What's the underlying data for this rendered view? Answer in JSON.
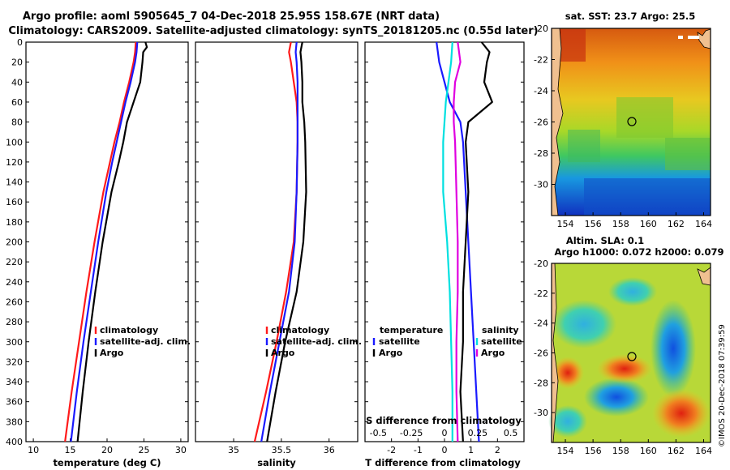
{
  "header": {
    "line1": "Argo profile: aoml 5905645_7 04-Dec-2018 25.95S 158.67E (NRT data)",
    "line2": "Climatology: CARS2009. Satellite-adjusted climatology: synTS_20181205.nc (0.55d later)"
  },
  "credit": "©IMOS 20-Dec-2018 07:39:59",
  "colors": {
    "climatology": "#ff1a1a",
    "satellite": "#1a1aff",
    "argo": "#000000",
    "s_satellite": "#00e0e0",
    "s_argo": "#e000e0"
  },
  "chart_data": [
    {
      "id": "temperature",
      "type": "line",
      "xlabel": "temperature (deg C)",
      "ylabel": "",
      "xlim": [
        9,
        31
      ],
      "ylim": [
        400,
        0
      ],
      "xticks": [
        "10",
        "15",
        "20",
        "25",
        "30"
      ],
      "xtick_values": [
        10,
        15,
        20,
        25,
        30
      ],
      "yticks": [
        "0",
        "20",
        "40",
        "60",
        "80",
        "100",
        "120",
        "140",
        "160",
        "180",
        "200",
        "220",
        "240",
        "260",
        "280",
        "300",
        "320",
        "340",
        "360",
        "380",
        "400"
      ],
      "ytick_values": [
        0,
        20,
        40,
        60,
        80,
        100,
        120,
        140,
        160,
        180,
        200,
        220,
        240,
        260,
        280,
        300,
        320,
        340,
        360,
        380,
        400
      ],
      "series": [
        {
          "name": "climatology",
          "color_key": "climatology",
          "depth": [
            0,
            10,
            20,
            40,
            60,
            80,
            100,
            120,
            150,
            200,
            250,
            300,
            350,
            400
          ],
          "values": [
            23.9,
            23.8,
            23.6,
            23.0,
            22.3,
            21.7,
            21.0,
            20.4,
            19.5,
            18.3,
            17.2,
            16.2,
            15.2,
            14.3
          ]
        },
        {
          "name": "satellite-adj. clim.",
          "color_key": "satellite",
          "depth": [
            0,
            10,
            20,
            40,
            60,
            80,
            100,
            120,
            150,
            200,
            250,
            300,
            350,
            400
          ],
          "values": [
            24.1,
            24.0,
            23.8,
            23.2,
            22.5,
            21.9,
            21.3,
            20.7,
            19.9,
            18.8,
            17.8,
            16.8,
            15.9,
            15.1
          ]
        },
        {
          "name": "Argo",
          "color_key": "argo",
          "depth": [
            0,
            5,
            10,
            20,
            40,
            60,
            80,
            100,
            120,
            150,
            200,
            250,
            300,
            350,
            400
          ],
          "values": [
            25.2,
            25.4,
            24.9,
            24.8,
            24.5,
            23.6,
            22.7,
            22.2,
            21.6,
            20.6,
            19.4,
            18.4,
            17.5,
            16.7,
            16.0
          ]
        }
      ],
      "legend": [
        "climatology",
        "satellite-adj. clim.",
        "Argo"
      ],
      "legend_position": "lower-right"
    },
    {
      "id": "salinity",
      "type": "line",
      "xlabel": "salinity",
      "ylabel": "",
      "xlim": [
        34.6,
        36.3
      ],
      "ylim": [
        400,
        0
      ],
      "xticks": [
        "35",
        "35.5",
        "36"
      ],
      "xtick_values": [
        35,
        35.5,
        36
      ],
      "series": [
        {
          "name": "climatology",
          "color_key": "climatology",
          "depth": [
            0,
            10,
            20,
            40,
            60,
            80,
            100,
            150,
            200,
            250,
            300,
            350,
            400
          ],
          "values": [
            35.6,
            35.58,
            35.6,
            35.63,
            35.66,
            35.67,
            35.67,
            35.66,
            35.63,
            35.55,
            35.45,
            35.34,
            35.22
          ]
        },
        {
          "name": "satellite-adj. clim.",
          "color_key": "satellite",
          "depth": [
            0,
            10,
            20,
            40,
            60,
            80,
            100,
            150,
            200,
            250,
            300,
            350,
            400
          ],
          "values": [
            35.66,
            35.65,
            35.66,
            35.67,
            35.67,
            35.67,
            35.67,
            35.66,
            35.64,
            35.58,
            35.48,
            35.38,
            35.29
          ]
        },
        {
          "name": "Argo",
          "color_key": "argo",
          "depth": [
            0,
            10,
            20,
            40,
            60,
            80,
            100,
            150,
            200,
            250,
            300,
            350,
            400
          ],
          "values": [
            35.72,
            35.7,
            35.71,
            35.72,
            35.72,
            35.74,
            35.75,
            35.76,
            35.73,
            35.66,
            35.54,
            35.44,
            35.35
          ]
        }
      ],
      "legend": [
        "climatology",
        "satellite-adj. clim.",
        "Argo"
      ],
      "legend_position": "lower-right"
    },
    {
      "id": "difference",
      "type": "line",
      "xlabel": "T difference from climatology",
      "xlabel_top": "S difference from climatology",
      "xlim": [
        -3,
        3
      ],
      "ylim": [
        400,
        0
      ],
      "xticks": [
        "-2",
        "-1",
        "0",
        "1",
        "2"
      ],
      "xtick_values": [
        -2,
        -1,
        0,
        1,
        2
      ],
      "s_xticks": [
        "-0.5",
        "-0.25",
        "0",
        "0.25",
        "0.5"
      ],
      "s_xtick_values": [
        -0.5,
        -0.25,
        0,
        0.25,
        0.5
      ],
      "series": [
        {
          "name": "temperature satellite",
          "color_key": "satellite",
          "depth": [
            0,
            20,
            40,
            60,
            80,
            100,
            150,
            200,
            250,
            300,
            350,
            400
          ],
          "values": [
            -0.3,
            -0.2,
            0.0,
            0.2,
            0.6,
            0.7,
            0.8,
            0.9,
            1.0,
            1.1,
            1.2,
            1.3
          ]
        },
        {
          "name": "temperature Argo",
          "color_key": "argo",
          "depth": [
            0,
            10,
            20,
            40,
            60,
            80,
            100,
            150,
            200,
            250,
            300,
            350,
            400
          ],
          "values": [
            1.4,
            1.7,
            1.6,
            1.5,
            1.8,
            0.9,
            0.8,
            0.9,
            0.8,
            0.7,
            0.7,
            0.6,
            0.7
          ]
        },
        {
          "name": "salinity satellite",
          "color_key": "s_satellite",
          "depth": [
            0,
            20,
            40,
            60,
            80,
            100,
            150,
            200,
            250,
            300,
            350,
            400
          ],
          "values": [
            0.06,
            0.05,
            0.03,
            0.01,
            0.0,
            -0.01,
            -0.01,
            0.02,
            0.04,
            0.05,
            0.06,
            0.06
          ]
        },
        {
          "name": "salinity Argo",
          "color_key": "s_argo",
          "depth": [
            0,
            20,
            40,
            60,
            80,
            100,
            150,
            200,
            250,
            300,
            350,
            400
          ],
          "values": [
            0.1,
            0.12,
            0.08,
            0.07,
            0.07,
            0.08,
            0.09,
            0.1,
            0.1,
            0.09,
            0.09,
            0.1
          ]
        }
      ],
      "legend_left_title": "temperature",
      "legend_left": [
        "satellite",
        "Argo"
      ],
      "legend_right_title": "salinity",
      "legend_right": [
        "satellite",
        "Argo"
      ]
    }
  ],
  "maps": [
    {
      "id": "sst-map",
      "title": "sat. SST: 23.7 Argo: 25.5",
      "title2": "",
      "lon_ticks": [
        "154",
        "156",
        "158",
        "160",
        "162",
        "164"
      ],
      "lat_ticks": [
        "-20",
        "-22",
        "-24",
        "-26",
        "-28",
        "-30"
      ],
      "profile_location": {
        "lon": 158.67,
        "lat": -25.95
      }
    },
    {
      "id": "sla-map",
      "title": "Altim. SLA: 0.1",
      "title2": "Argo h1000: 0.072 h2000: 0.079",
      "lon_ticks": [
        "154",
        "156",
        "158",
        "160",
        "162",
        "164"
      ],
      "lat_ticks": [
        "-20",
        "-22",
        "-24",
        "-26",
        "-28",
        "-30"
      ],
      "profile_location": {
        "lon": 158.67,
        "lat": -25.95
      }
    }
  ]
}
